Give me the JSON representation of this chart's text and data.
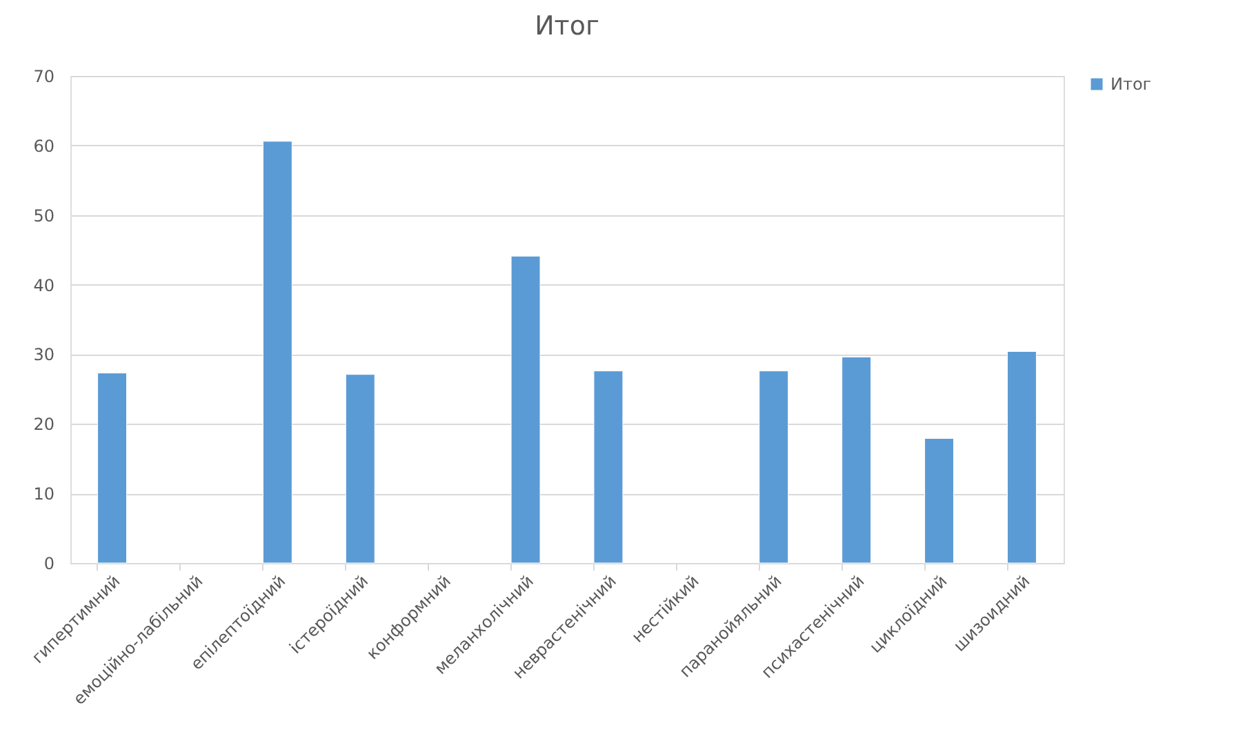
{
  "chart_data": {
    "type": "bar",
    "title": "Итог",
    "categories": [
      "гипертимний",
      "емоційно-лабільний",
      "епілептоїдний",
      "істероїдний",
      "конформний",
      "меланхолічний",
      "неврастенічний",
      "нестійкий",
      "паранойяльний",
      "психастенічний",
      "циклоїдний",
      "шизоидний"
    ],
    "series": [
      {
        "name": "Итог",
        "color": "#5b9bd5",
        "values": [
          27.3,
          null,
          60.6,
          27.1,
          null,
          44.1,
          27.6,
          null,
          27.6,
          29.6,
          17.9,
          30.4
        ]
      }
    ],
    "ylim": [
      0,
      70
    ],
    "yticks": [
      0,
      10,
      20,
      30,
      40,
      50,
      60,
      70
    ],
    "grid": "y",
    "legend": "right"
  }
}
